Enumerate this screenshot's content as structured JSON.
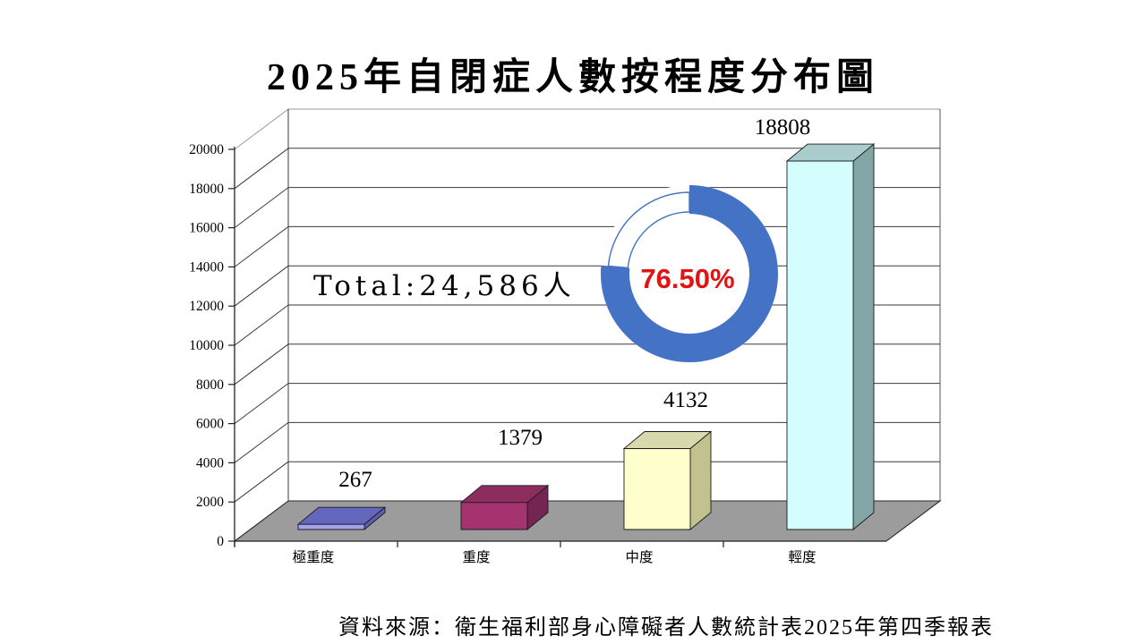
{
  "title": "2025年自閉症人數按程度分布圖",
  "total_label": "Total:24,586人",
  "source": "資料來源：衛生福利部身心障礙者人數統計表2025年第四季報表",
  "donut": {
    "percent": 76.5,
    "percent_label": "76.50%",
    "ring_color": "#4472C4",
    "text_color": "#E21313"
  },
  "chart_data": {
    "type": "bar",
    "title": "2025年自閉症人數按程度分布圖",
    "categories": [
      "極重度",
      "重度",
      "中度",
      "輕度"
    ],
    "values": [
      267,
      1379,
      4132,
      18808
    ],
    "value_labels": [
      "267",
      "1379",
      "4132",
      "18808"
    ],
    "ylim": [
      0,
      20000
    ],
    "yticks": [
      0,
      2000,
      4000,
      6000,
      8000,
      10000,
      12000,
      14000,
      16000,
      18000,
      20000
    ],
    "grid": true,
    "legend": "none",
    "floor_color": "#9C9C9C",
    "bar_styles": [
      {
        "front": "#A2A2EC",
        "top": "#6566BE",
        "side": "#5E5FB2"
      },
      {
        "front": "#A43370",
        "top": "#8D2C5E",
        "side": "#742551"
      },
      {
        "front": "#FFFFCC",
        "top": "#D9D9AE",
        "side": "#C2C28E"
      },
      {
        "front": "#D4FDFD",
        "top": "#ABCCCC",
        "side": "#82A5A5"
      }
    ]
  }
}
